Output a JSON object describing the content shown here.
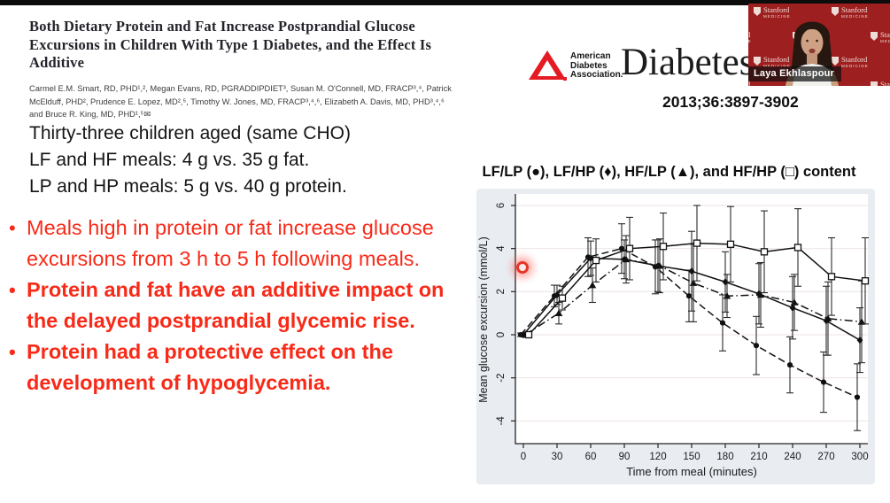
{
  "slide": {
    "paper": {
      "title": "Both Dietary Protein and Fat Increase Postprandial Glucose Excursions in Children With Type 1 Diabetes, and the Effect Is Additive",
      "authors": "Carmel E.M. Smart, RD, PHD¹,², Megan Evans, RD, PGRADDIPDIET³, Susan M. O'Connell, MD, FRACP³,⁴, Patrick McElduff, PHD², Prudence E. Lopez, MD²,⁵, Timothy W. Jones, MD, FRACP³,⁴,⁶, Elizabeth A. Davis, MD, PHD³,⁴,⁶ and Bruce R. King, MD, PHD¹,⁵✉"
    },
    "journal": {
      "logo_line1": "American",
      "logo_line2": "Diabetes",
      "logo_line3": "Association.",
      "logo_color": "#e51b24",
      "name": "Diabetes",
      "citation": "2013;36:3897-3902"
    },
    "study_facts": {
      "line1": "Thirty-three children aged (same CHO)",
      "line2": "LF and HF meals: 4 g vs. 35 g fat.",
      "line3": "LP and HP meals: 5 g vs. 40 g protein."
    },
    "bullets": [
      {
        "text": "Meals high in protein or fat increase glucose excursions from 3 h to 5 h following meals.",
        "bold": false
      },
      {
        "text": "Protein and fat have an additive impact on the delayed postprandial glycemic rise.",
        "bold": true
      },
      {
        "text": "Protein had a protective effect on the development of hypoglycemia.",
        "bold": true
      }
    ],
    "accent_red": "#f82a18"
  },
  "webcam": {
    "name": "Laya Ekhlaspour",
    "bg_color": "#9e1f1f",
    "logo_word1": "Stanford",
    "logo_word2": "MEDICINE"
  },
  "chart_data": {
    "type": "line",
    "title": "LF/LP (●), LF/HP (♦), HF/LP (▲), and HF/HP (□) content",
    "xlabel": "Time from meal (minutes)",
    "ylabel": "Mean glucose excursion (mmol/L)",
    "x": [
      0,
      30,
      60,
      90,
      120,
      150,
      180,
      210,
      240,
      270,
      300
    ],
    "xticks": [
      0,
      30,
      60,
      90,
      120,
      150,
      180,
      210,
      240,
      270,
      300
    ],
    "yticks": [
      6,
      4,
      2,
      0,
      -2,
      -4
    ],
    "ylim": [
      -5.0,
      6.4
    ],
    "grid": true,
    "legend_position": "in-title",
    "background": "#e9edf2",
    "series": [
      {
        "name": "LF/LP",
        "marker": "circle",
        "line": "dashed",
        "values": [
          0,
          1.8,
          3.6,
          4.0,
          3.15,
          1.8,
          0.55,
          -0.5,
          -1.4,
          -2.2,
          -2.9
        ],
        "err": [
          0.08,
          0.5,
          0.9,
          1.15,
          1.25,
          1.2,
          1.3,
          1.35,
          1.3,
          1.4,
          1.55
        ]
      },
      {
        "name": "HF/LP",
        "marker": "triangle",
        "line": "dashdot",
        "values": [
          0,
          1.0,
          2.3,
          3.5,
          3.2,
          2.4,
          1.8,
          1.85,
          1.5,
          0.75,
          0.6
        ],
        "err": [
          0.08,
          0.5,
          0.8,
          1.1,
          1.25,
          1.8,
          1.0,
          1.5,
          1.3,
          1.7,
          1.9
        ]
      },
      {
        "name": "LF/HP",
        "marker": "diamond",
        "line": "solid",
        "values": [
          0,
          1.85,
          3.55,
          3.5,
          3.2,
          2.95,
          2.45,
          1.9,
          1.25,
          0.65,
          -0.25
        ],
        "err": [
          0.08,
          0.45,
          0.8,
          0.9,
          1.2,
          1.85,
          1.4,
          1.4,
          1.45,
          1.6,
          1.5
        ]
      },
      {
        "name": "HF/HP",
        "marker": "square-open",
        "line": "solid",
        "values": [
          0,
          1.7,
          3.45,
          4.0,
          4.1,
          4.25,
          4.2,
          3.85,
          4.05,
          2.7,
          2.5
        ],
        "err": [
          0.08,
          0.55,
          1.0,
          1.45,
          1.55,
          1.75,
          1.75,
          1.9,
          1.8,
          1.8,
          2.0
        ]
      }
    ],
    "laser_pointer": {
      "visible": true
    }
  }
}
